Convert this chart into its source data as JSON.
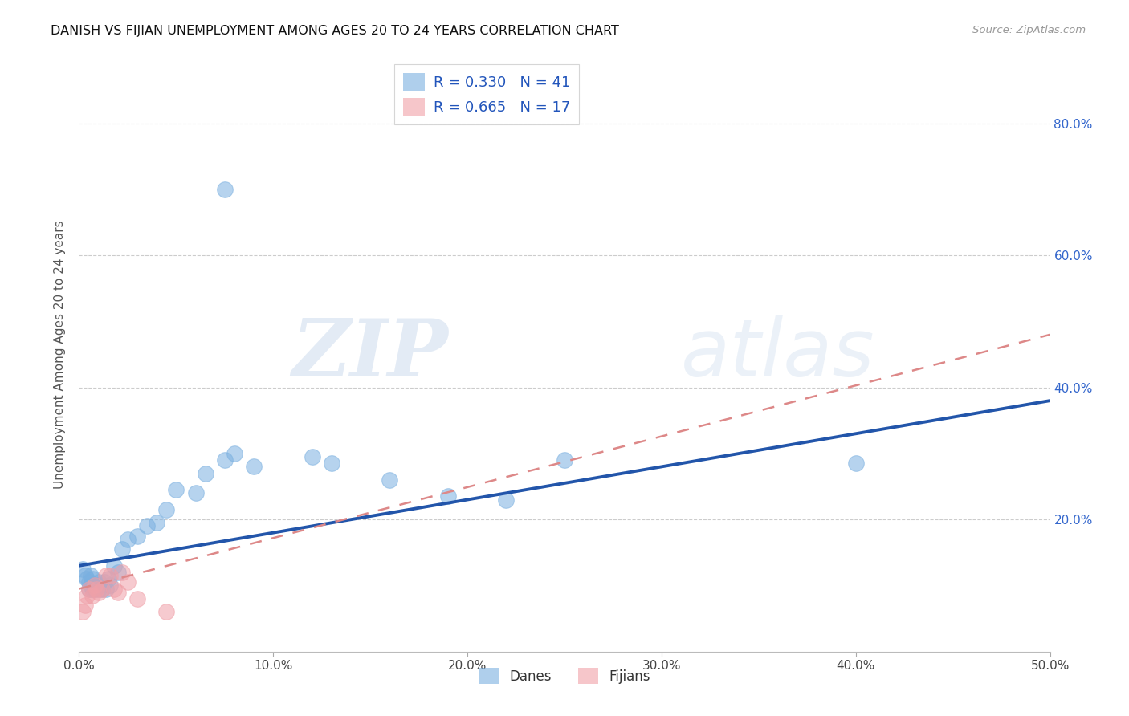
{
  "title": "DANISH VS FIJIAN UNEMPLOYMENT AMONG AGES 20 TO 24 YEARS CORRELATION CHART",
  "source": "Source: ZipAtlas.com",
  "ylabel": "Unemployment Among Ages 20 to 24 years",
  "xlim": [
    0.0,
    0.5
  ],
  "ylim": [
    0.0,
    0.9
  ],
  "danes_color": "#7ab0e0",
  "fijians_color": "#f0a0a8",
  "danes_line_color": "#2255aa",
  "fijians_line_color": "#dd8888",
  "danes_R": 0.33,
  "danes_N": 41,
  "fijians_R": 0.665,
  "fijians_N": 17,
  "background_color": "#ffffff",
  "grid_color": "#cccccc",
  "watermark_zip": "ZIP",
  "watermark_atlas": "atlas",
  "danes_line_x0": 0.0,
  "danes_line_y0": 0.13,
  "danes_line_x1": 0.5,
  "danes_line_y1": 0.38,
  "fijians_line_x0": 0.0,
  "fijians_line_y0": 0.095,
  "fijians_line_x1": 0.5,
  "fijians_line_y1": 0.48,
  "danes_x": [
    0.002,
    0.003,
    0.004,
    0.005,
    0.005,
    0.006,
    0.006,
    0.007,
    0.007,
    0.008,
    0.009,
    0.01,
    0.01,
    0.011,
    0.012,
    0.013,
    0.014,
    0.015,
    0.016,
    0.018,
    0.02,
    0.022,
    0.025,
    0.03,
    0.035,
    0.04,
    0.045,
    0.05,
    0.06,
    0.065,
    0.075,
    0.08,
    0.09,
    0.12,
    0.13,
    0.16,
    0.19,
    0.22,
    0.25,
    0.4,
    0.075
  ],
  "danes_y": [
    0.125,
    0.115,
    0.11,
    0.105,
    0.095,
    0.1,
    0.115,
    0.095,
    0.11,
    0.095,
    0.1,
    0.095,
    0.105,
    0.1,
    0.095,
    0.105,
    0.095,
    0.11,
    0.1,
    0.13,
    0.12,
    0.155,
    0.17,
    0.175,
    0.19,
    0.195,
    0.215,
    0.245,
    0.24,
    0.27,
    0.29,
    0.3,
    0.28,
    0.295,
    0.285,
    0.26,
    0.235,
    0.23,
    0.29,
    0.285,
    0.7
  ],
  "fijians_x": [
    0.002,
    0.003,
    0.004,
    0.005,
    0.007,
    0.008,
    0.009,
    0.01,
    0.012,
    0.014,
    0.016,
    0.018,
    0.02,
    0.022,
    0.025,
    0.03,
    0.045
  ],
  "fijians_y": [
    0.06,
    0.07,
    0.085,
    0.095,
    0.085,
    0.1,
    0.095,
    0.09,
    0.095,
    0.115,
    0.115,
    0.095,
    0.09,
    0.12,
    0.105,
    0.08,
    0.06
  ]
}
